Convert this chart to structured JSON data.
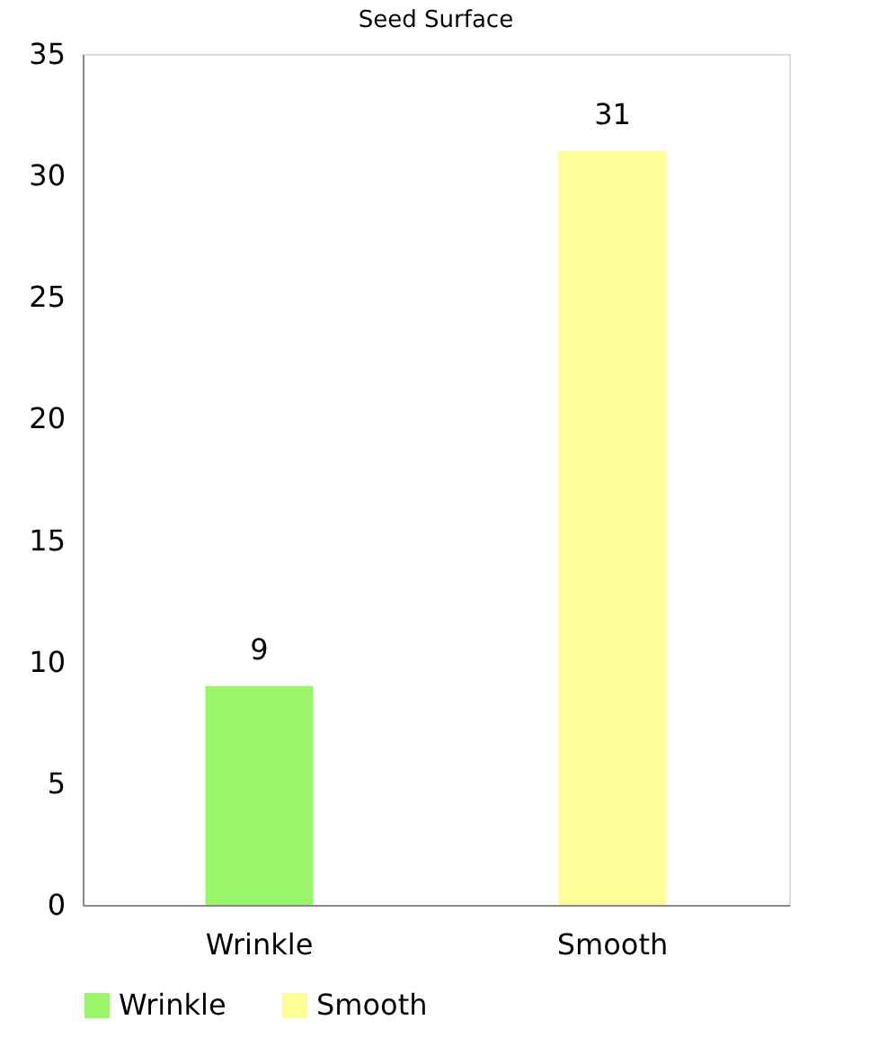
{
  "chart_data": {
    "type": "bar",
    "title": "Seed Surface",
    "categories": [
      "Wrinkle",
      "Smooth"
    ],
    "series": [
      {
        "name": "Wrinkle",
        "color": "#99f66a",
        "values": [
          9,
          null
        ]
      },
      {
        "name": "Smooth",
        "color": "#ffff99",
        "values": [
          null,
          31
        ]
      }
    ],
    "ylim": [
      0,
      35
    ],
    "yticks": [
      0,
      5,
      10,
      15,
      20,
      25,
      30,
      35
    ],
    "grid": false,
    "legend": "bottom",
    "data_labels": true
  }
}
